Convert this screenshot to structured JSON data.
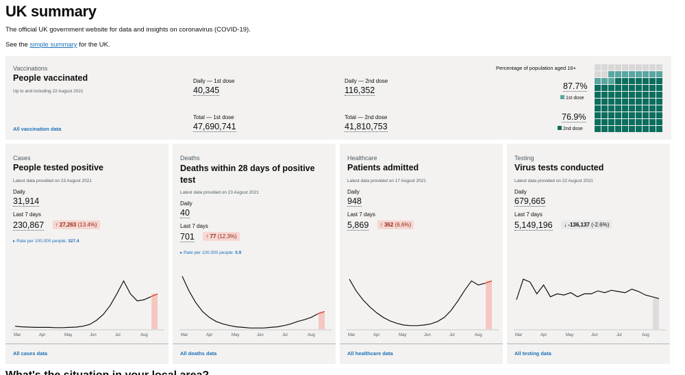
{
  "page": {
    "title": "UK summary",
    "intro": "The official UK government website for data and insights on coronavirus (COVID-19).",
    "see_prefix": "See the",
    "see_link": "simple summary",
    "see_suffix": "for the UK.",
    "next_heading": "What's the situation in your local area?"
  },
  "vaccinations": {
    "caption": "Vaccinations",
    "title": "People vaccinated",
    "meta": "Up to and including 22 August 2021",
    "link": "All vaccination data",
    "daily_first_label": "Daily — 1st dose",
    "daily_first_value": "40,345",
    "total_first_label": "Total — 1st dose",
    "total_first_value": "47,690,741",
    "daily_second_label": "Daily — 2nd dose",
    "daily_second_value": "116,352",
    "total_second_label": "Total — 2nd dose",
    "total_second_value": "41,810,753",
    "pop_label": "Percentage of population aged 16+",
    "first_pct": "87.7%",
    "first_legend": "1st dose",
    "second_pct": "76.9%",
    "second_legend": "2nd dose",
    "first_pct_value": 87.7,
    "second_pct_value": 76.9,
    "colors": {
      "first": "#5aa6a0",
      "second": "#00703c",
      "empty": "#d8d8d8",
      "second_dark": "#0b6e5e"
    }
  },
  "cards": [
    {
      "caption": "Cases",
      "title": "People tested positive",
      "meta": "Latest data provided on 23 August 2021",
      "daily_label": "Daily",
      "daily_value": "31,914",
      "week_label": "Last 7 days",
      "week_value": "230,867",
      "change_arrow": "↑",
      "change_value": "27,263",
      "change_pct": "(13.4%)",
      "direction": "up",
      "rate_label": "Rate per 100,000 people:",
      "rate_value": "327.4",
      "link": "All cases data"
    },
    {
      "caption": "Deaths",
      "title": "Deaths within 28 days of positive test",
      "meta": "Latest data provided on 23 August 2021",
      "daily_label": "Daily",
      "daily_value": "40",
      "week_label": "Last 7 days",
      "week_value": "701",
      "change_arrow": "↑",
      "change_value": "77",
      "change_pct": "(12.3%)",
      "direction": "up",
      "rate_label": "Rate per 100,000 people:",
      "rate_value": "0.9",
      "link": "All deaths data"
    },
    {
      "caption": "Healthcare",
      "title": "Patients admitted",
      "meta": "Latest data provided on 17 August 2021",
      "daily_label": "Daily",
      "daily_value": "948",
      "week_label": "Last 7 days",
      "week_value": "5,869",
      "change_arrow": "↑",
      "change_value": "362",
      "change_pct": "(6.6%)",
      "direction": "up",
      "link": "All healthcare data"
    },
    {
      "caption": "Testing",
      "title": "Virus tests conducted",
      "meta": "Latest data provided on 22 August 2021",
      "daily_label": "Daily",
      "daily_value": "679,665",
      "week_label": "Last 7 days",
      "week_value": "5,149,196",
      "change_arrow": "↓",
      "change_value": "-136,137",
      "change_pct": "(-2.6%)",
      "direction": "down",
      "link": "All testing data"
    }
  ],
  "chart_months": [
    "Mar",
    "Apr",
    "May",
    "Jun",
    "Jul",
    "Aug"
  ],
  "chart_series": [
    [
      0.05,
      0.04,
      0.035,
      0.03,
      0.03,
      0.03,
      0.025,
      0.025,
      0.03,
      0.035,
      0.05,
      0.08,
      0.15,
      0.25,
      0.4,
      0.6,
      0.82,
      0.6,
      0.48,
      0.5,
      0.55,
      0.6
    ],
    [
      0.9,
      0.65,
      0.45,
      0.3,
      0.2,
      0.13,
      0.09,
      0.06,
      0.04,
      0.03,
      0.02,
      0.02,
      0.02,
      0.03,
      0.04,
      0.06,
      0.09,
      0.13,
      0.16,
      0.2,
      0.26,
      0.3
    ],
    [
      0.85,
      0.65,
      0.5,
      0.38,
      0.28,
      0.2,
      0.14,
      0.1,
      0.07,
      0.06,
      0.06,
      0.07,
      0.09,
      0.13,
      0.2,
      0.32,
      0.48,
      0.66,
      0.82,
      0.75,
      0.78,
      0.82
    ],
    [
      0.5,
      0.85,
      0.8,
      0.6,
      0.75,
      0.55,
      0.6,
      0.58,
      0.62,
      0.55,
      0.6,
      0.6,
      0.65,
      0.62,
      0.66,
      0.64,
      0.62,
      0.68,
      0.64,
      0.58,
      0.55,
      0.52
    ]
  ]
}
